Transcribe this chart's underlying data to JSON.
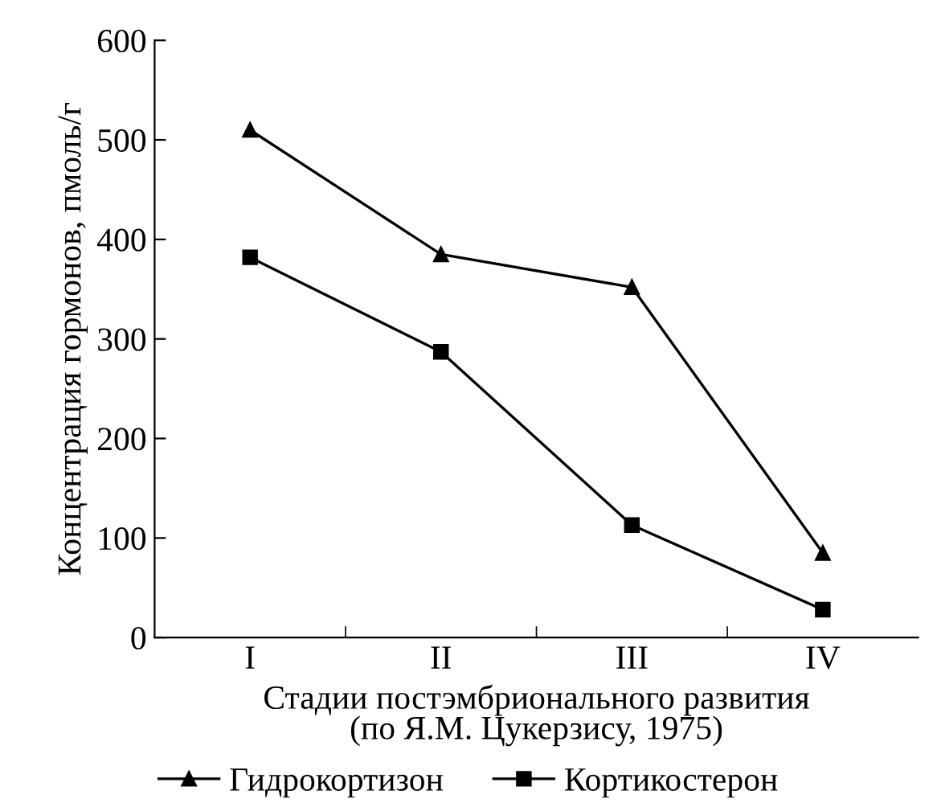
{
  "chart_data": {
    "type": "line",
    "xlabel": "Стадии постэмбрионального развития\n(по Я.М. Цукерзису, 1975)",
    "ylabel": "Концентрация гормонов, пмоль/г",
    "categories": [
      "I",
      "II",
      "III",
      "IV"
    ],
    "ylim": [
      0,
      600
    ],
    "yticks": [
      0,
      100,
      200,
      300,
      400,
      500,
      600
    ],
    "grid": false,
    "legend": "bottom",
    "series": [
      {
        "name": "Гидрокортизон",
        "color": "#000000",
        "marker": "triangle",
        "values": [
          510,
          385,
          352,
          85
        ]
      },
      {
        "name": "Кортикостерон",
        "color": "#000000",
        "marker": "square",
        "values": [
          382,
          287,
          113,
          28
        ]
      }
    ]
  }
}
